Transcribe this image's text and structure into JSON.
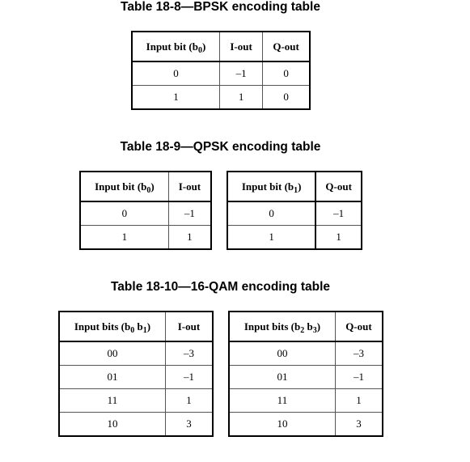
{
  "bpsk": {
    "caption": "Table 18-8—BPSK encoding table",
    "headers": {
      "input_prefix": "Input bit (b",
      "input_sub": "0",
      "input_suffix": ")",
      "i_out": "I-out",
      "q_out": "Q-out"
    },
    "rows": [
      {
        "input": "0",
        "i": "–1",
        "q": "0"
      },
      {
        "input": "1",
        "i": "1",
        "q": "0"
      }
    ]
  },
  "qpsk": {
    "caption": "Table 18-9—QPSK encoding table",
    "i_table": {
      "headers": {
        "input_prefix": "Input bit (b",
        "input_sub": "0",
        "input_suffix": ")",
        "out": "I-out"
      },
      "rows": [
        {
          "input": "0",
          "out": "–1"
        },
        {
          "input": "1",
          "out": "1"
        }
      ]
    },
    "q_table": {
      "headers": {
        "input_prefix": "Input bit (b",
        "input_sub": "1",
        "input_suffix": ")",
        "out": "Q-out"
      },
      "rows": [
        {
          "input": "0",
          "out": "–1"
        },
        {
          "input": "1",
          "out": "1"
        }
      ]
    }
  },
  "qam16": {
    "caption": "Table 18-10—16-QAM encoding table",
    "i_table": {
      "headers": {
        "input_prefix": "Input bits (b",
        "input_sub1": "0",
        "input_mid": " b",
        "input_sub2": "1",
        "input_suffix": ")",
        "out": "I-out"
      },
      "rows": [
        {
          "input": "00",
          "out": "–3"
        },
        {
          "input": "01",
          "out": "–1"
        },
        {
          "input": "11",
          "out": "1"
        },
        {
          "input": "10",
          "out": "3"
        }
      ]
    },
    "q_table": {
      "headers": {
        "input_prefix": "Input bits (b",
        "input_sub1": "2",
        "input_mid": " b",
        "input_sub2": "3",
        "input_suffix": ")",
        "out": "Q-out"
      },
      "rows": [
        {
          "input": "00",
          "out": "–3"
        },
        {
          "input": "01",
          "out": "–1"
        },
        {
          "input": "11",
          "out": "1"
        },
        {
          "input": "10",
          "out": "3"
        }
      ]
    }
  }
}
